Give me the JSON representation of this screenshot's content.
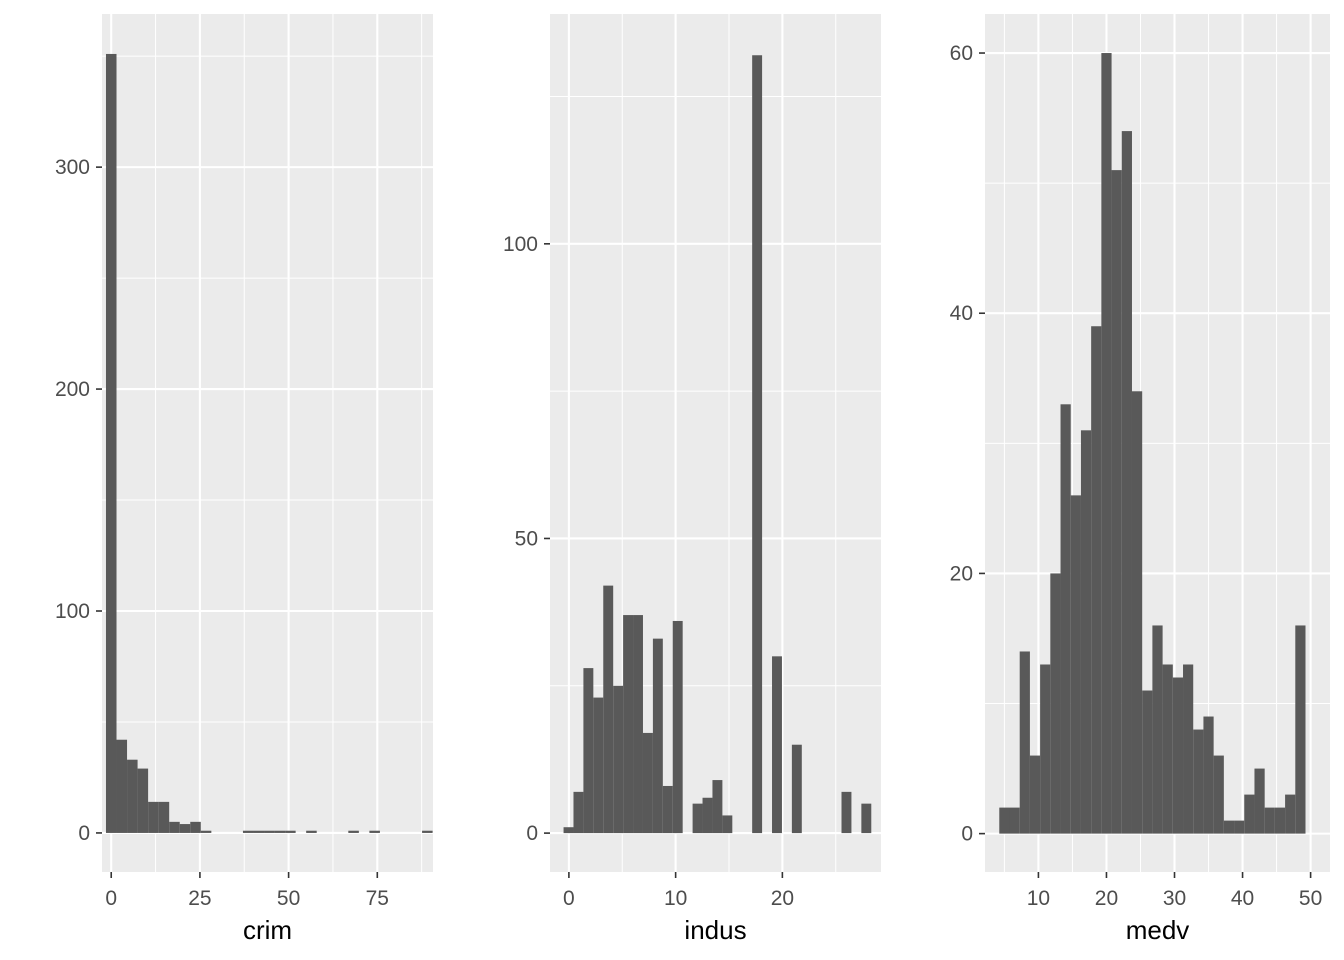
{
  "chart_data": [
    {
      "type": "bar",
      "xlabel": "crim",
      "ylabel": "",
      "binwidth": 2.97,
      "x_start": -1.48,
      "counts": [
        351,
        42,
        33,
        29,
        14,
        14,
        5,
        4,
        5,
        1,
        0,
        0,
        0,
        1,
        1,
        1,
        1,
        1,
        0,
        1,
        0,
        0,
        0,
        1,
        0,
        1,
        0,
        0,
        0,
        0,
        1
      ],
      "xlim": [
        -2.6,
        90.7
      ],
      "ylim": [
        -17.6,
        369
      ],
      "x_ticks": [
        0,
        25,
        50,
        75
      ],
      "x_tick_labels": [
        "0",
        "25",
        "50",
        "75"
      ],
      "y_ticks": [
        0,
        100,
        200,
        300
      ],
      "y_tick_labels": [
        "0",
        "100",
        "200",
        "300"
      ]
    },
    {
      "type": "bar",
      "xlabel": "indus",
      "ylabel": "",
      "binwidth": 0.93,
      "x_start": -0.5,
      "counts": [
        1,
        7,
        28,
        23,
        42,
        25,
        37,
        37,
        17,
        33,
        8,
        36,
        0,
        5,
        6,
        9,
        3,
        0,
        0,
        132,
        0,
        30,
        0,
        15,
        0,
        0,
        0,
        0,
        7,
        0,
        5
      ],
      "xlim": [
        -1.77,
        29.24
      ],
      "ylim": [
        -6.6,
        139
      ],
      "x_ticks": [
        0,
        10,
        20
      ],
      "x_tick_labels": [
        "0",
        "10",
        "20"
      ],
      "y_ticks": [
        0,
        50,
        100
      ],
      "y_tick_labels": [
        "0",
        "50",
        "100"
      ]
    },
    {
      "type": "bar",
      "xlabel": "medv",
      "ylabel": "",
      "binwidth": 1.5,
      "x_start": 4.25,
      "counts": [
        2,
        2,
        14,
        6,
        13,
        20,
        33,
        26,
        31,
        39,
        60,
        51,
        54,
        34,
        11,
        16,
        13,
        12,
        13,
        8,
        9,
        6,
        1,
        1,
        3,
        5,
        2,
        2,
        3,
        16
      ],
      "xlim": [
        2.15,
        52.85
      ],
      "ylim": [
        -2.95,
        63
      ],
      "x_ticks": [
        10,
        20,
        30,
        40,
        50
      ],
      "x_tick_labels": [
        "10",
        "20",
        "30",
        "40",
        "50"
      ],
      "y_ticks": [
        0,
        20,
        40,
        60
      ],
      "y_tick_labels": [
        "0",
        "20",
        "40",
        "60"
      ]
    }
  ]
}
